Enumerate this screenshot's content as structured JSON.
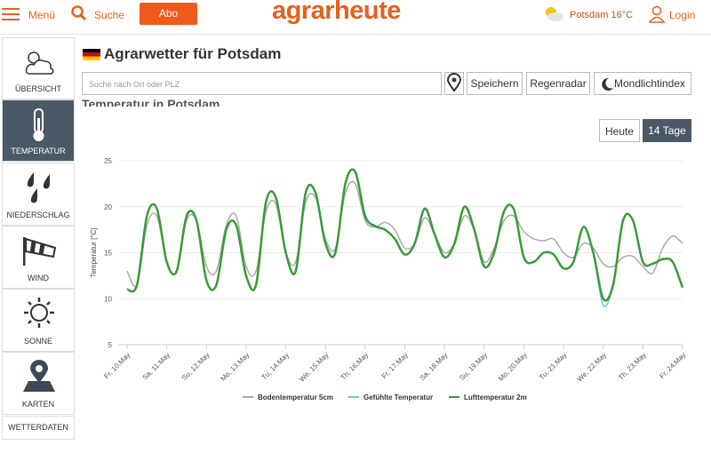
{
  "header": {
    "menu": "Menü",
    "search": "Suche",
    "subscribe": "Abo",
    "logo": "agrarheute",
    "weather": "Potsdam 16°C",
    "login": "Login"
  },
  "sidebar": [
    "ÜBERSICHT",
    "TEMPERATUR",
    "NIEDERSCHLAG",
    "WIND",
    "SONNE",
    "KARTEN",
    "WETTERDATEN"
  ],
  "page": {
    "title": "Agrarwetter für Potsdam",
    "search_placeholder": "Suche nach Ort oder PLZ",
    "buttons": [
      "Speichern",
      "Regenradar",
      "Mondlichtindex"
    ],
    "section_title": "Temperatur in Potsdam",
    "range_buttons": [
      "Heute",
      "14 Tage"
    ]
  },
  "chart_data": {
    "type": "line",
    "y_label": "Temperatur [°C]",
    "categories": [
      "Fr, 10.May",
      null,
      null,
      null,
      "Sa, 11.May",
      null,
      null,
      null,
      "Su, 12.May",
      null,
      null,
      null,
      "Mo, 13.May",
      null,
      null,
      null,
      "Tu, 14.May",
      null,
      null,
      null,
      "We, 15.May",
      null,
      null,
      null,
      "Th, 16.May",
      null,
      null,
      null,
      "Fr, 17.May",
      null,
      null,
      null,
      "Sa, 18.May",
      null,
      null,
      null,
      "Su, 19.May",
      null,
      null,
      null,
      "Mo, 20.May",
      null,
      null,
      null,
      "Tu, 21.May",
      null,
      null,
      null,
      "We, 22.May",
      null,
      null,
      null,
      "Th, 23.May",
      null,
      null,
      null,
      "Fr, 24.May"
    ],
    "ylim": [
      5,
      25
    ],
    "yticks": [
      5,
      10,
      15,
      20,
      25
    ],
    "grid": true,
    "series": [
      {
        "name": "Bodentemperatur 5cm",
        "color": "#aaaaaa",
        "values": [
          13,
          11.5,
          18,
          19,
          14,
          13,
          18.5,
          18.5,
          13.5,
          13,
          18,
          19,
          13.5,
          13,
          19.5,
          20.3,
          15,
          14,
          20.5,
          21,
          16.5,
          15.5,
          21.5,
          22.5,
          18.5,
          17.8,
          18.3,
          17.5,
          15.5,
          16,
          18.8,
          17,
          15,
          16,
          19,
          17.5,
          14,
          15.5,
          18.5,
          19,
          17.3,
          16.5,
          16.3,
          16.5,
          15,
          14.5,
          16,
          15.5,
          13.8,
          13.5,
          14.5,
          14.6,
          13.5,
          12.8,
          15.5,
          16.8,
          16
        ]
      },
      {
        "name": "Gefühlte Temperatur",
        "color": "#6cc3d5",
        "values": [
          11,
          11.5,
          19,
          19.8,
          14,
          13,
          19,
          18.5,
          12,
          11.5,
          17.5,
          18,
          12.5,
          11.5,
          20.5,
          21,
          15,
          13,
          21.5,
          21.5,
          16,
          15,
          22.5,
          23.8,
          19,
          17.9,
          17.5,
          16.5,
          14.8,
          16,
          19.8,
          17,
          14.5,
          16,
          20,
          17.5,
          13.5,
          15,
          19.5,
          19.7,
          14.5,
          14,
          15,
          14.8,
          13.3,
          14,
          17.8,
          15,
          9.3,
          11.5,
          18.5,
          18.5,
          14,
          13.8,
          14.3,
          14,
          11.2
        ]
      },
      {
        "name": "Lufttemperatur 2m",
        "color": "#3a9a3a",
        "values": [
          11,
          11.5,
          19,
          19.8,
          14,
          13,
          19,
          18.5,
          12,
          11.5,
          17.5,
          18,
          12.5,
          11.5,
          20.5,
          21,
          15,
          13,
          21.5,
          21.5,
          16,
          15,
          22.5,
          23.8,
          19,
          17.9,
          17.5,
          16.5,
          14.8,
          16,
          19.8,
          17,
          14.5,
          16,
          20,
          17.5,
          13.5,
          15,
          19.5,
          19.7,
          14.5,
          14,
          15,
          14.8,
          13.3,
          14,
          17.8,
          15,
          10,
          11.5,
          18.5,
          18.5,
          14,
          13.8,
          14.3,
          14,
          11.2
        ]
      }
    ]
  }
}
